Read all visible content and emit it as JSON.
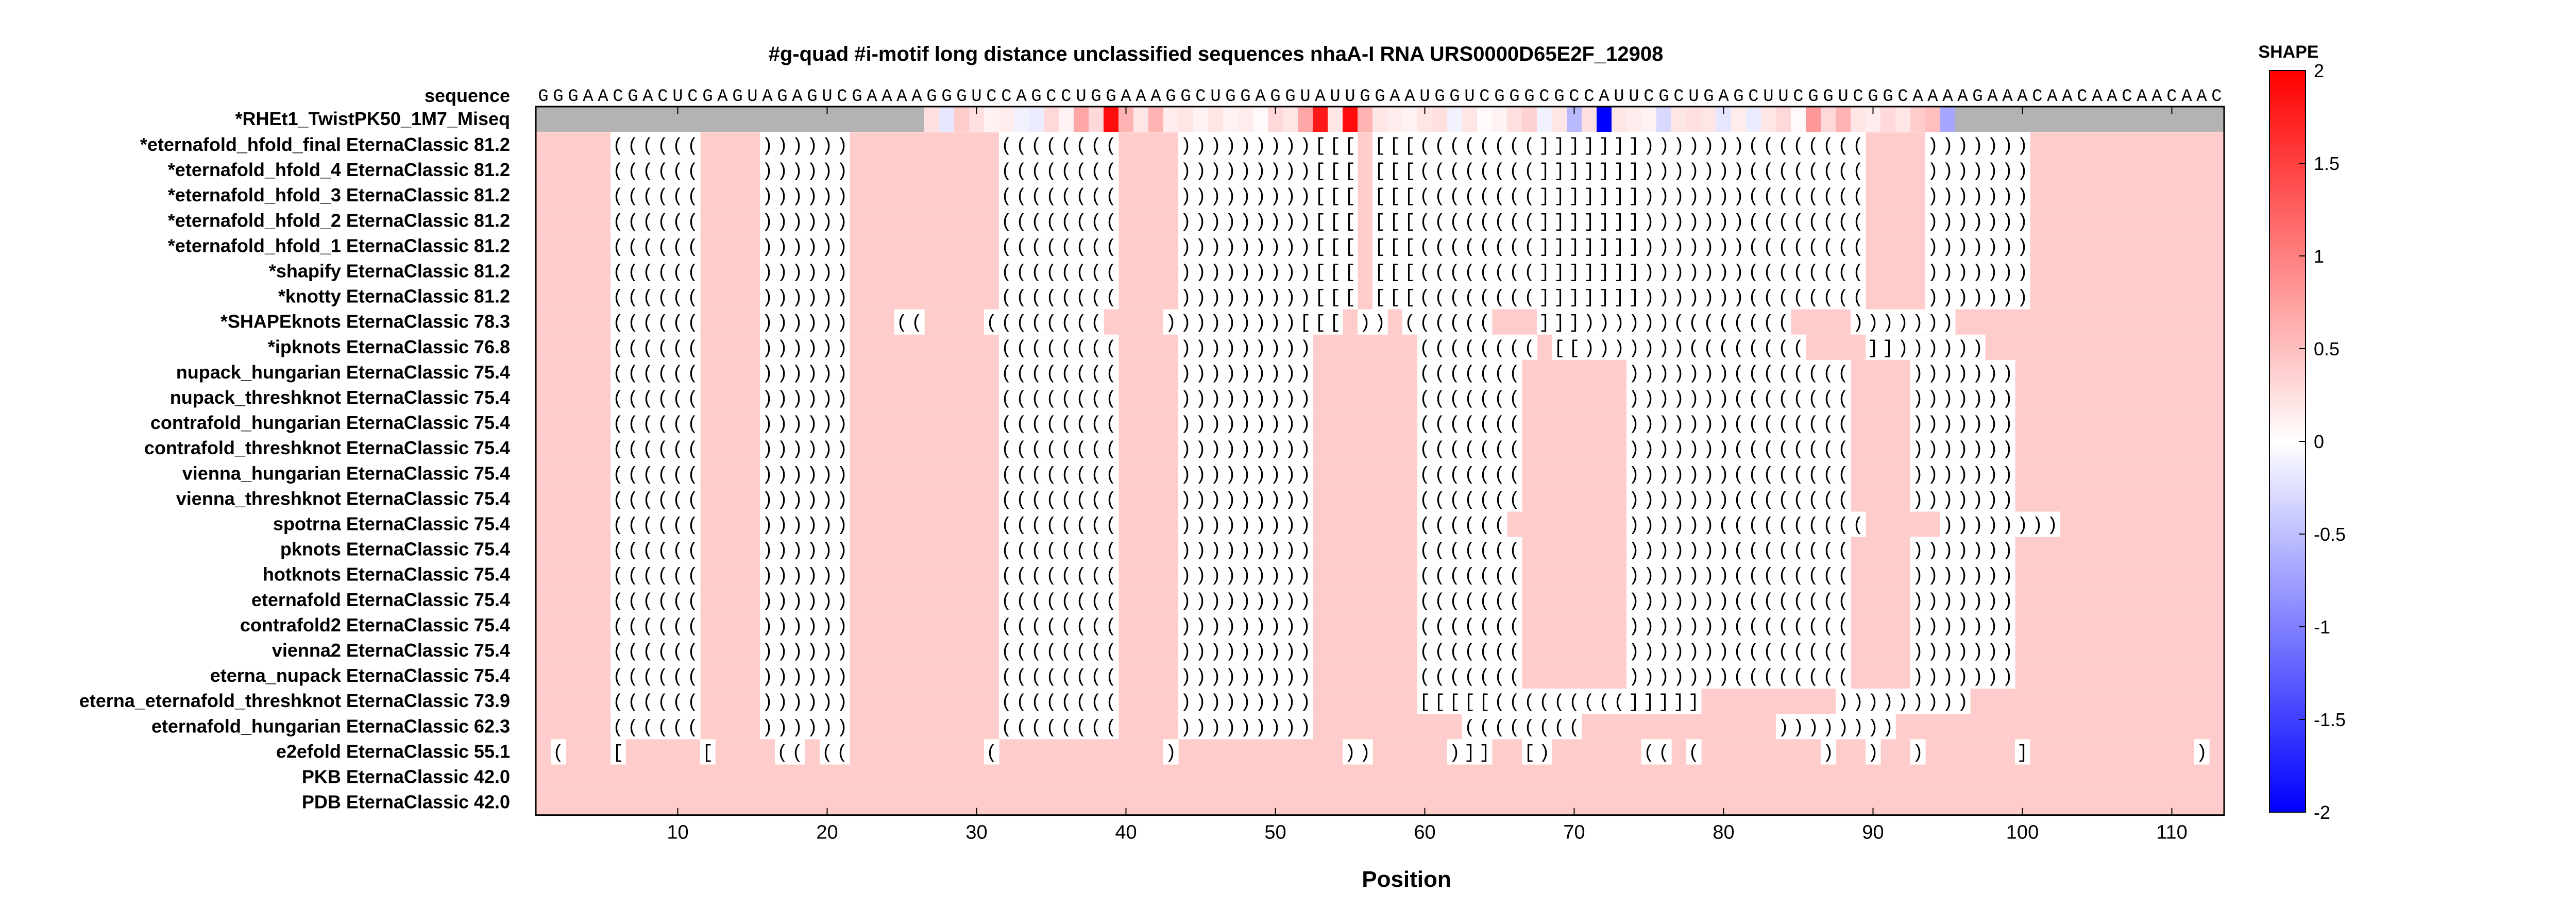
{
  "chart_data": {
    "type": "heatmap",
    "title": "#g-quad #i-motif long distance unclassified sequences nhaA-I RNA URS0000D65E2F_12908",
    "xlabel": "Position",
    "xlim": [
      1,
      115
    ],
    "xticks": [
      10,
      20,
      30,
      40,
      50,
      60,
      70,
      80,
      90,
      100,
      110
    ],
    "colorbar": {
      "label": "SHAPE",
      "range": [
        -2,
        2
      ],
      "ticks": [
        "2",
        "1.5",
        "1",
        "0.5",
        "0",
        "-0.5",
        "-1",
        "-1.5",
        "-2"
      ],
      "low_color": "#0000ff",
      "mid_color": "#ffffff",
      "high_color": "#ff0000"
    },
    "sequence_label": "sequence",
    "sequence": "GGGAACGACUCGAGUAGAGUCGAAAAGGGUCCAGCCUGGAAAGGCUGGAGGUAUUGGAAUGGUCGGGCGCCAUUCGCUGAGCUUCGGUCGGCAAAAGAAACAACAACAACAAC",
    "shape_label": "*RHEt1_TwistPK50_1M7_Miseq",
    "shape_range": [
      27,
      95
    ],
    "shape_values": {
      "27": 0.25,
      "28": -0.2,
      "29": 0.4,
      "30": 0.25,
      "31": 0.1,
      "32": 0.15,
      "33": -0.1,
      "34": -0.15,
      "35": 0.3,
      "36": 0.1,
      "37": 0.7,
      "38": 0.3,
      "39": 1.9,
      "40": 0.6,
      "41": 0.2,
      "42": 0.6,
      "43": 0.15,
      "44": 0.2,
      "45": 0.1,
      "46": 0.2,
      "47": 0.1,
      "48": 0.15,
      "49": 0.05,
      "50": 0.3,
      "51": 0.2,
      "52": 0.7,
      "53": 1.8,
      "54": 0.2,
      "55": 1.9,
      "56": 0.6,
      "57": 0.2,
      "58": 0.15,
      "59": 0.1,
      "60": 0.2,
      "61": 0.25,
      "62": -0.1,
      "63": 0.2,
      "64": 0.05,
      "65": 0.1,
      "66": 0.25,
      "67": 0.35,
      "68": -0.1,
      "69": 0.2,
      "70": -0.55,
      "71": 0.25,
      "72": -2.0,
      "73": 0.2,
      "74": 0.15,
      "75": 0.1,
      "76": -0.3,
      "77": 0.2,
      "78": 0.25,
      "79": 0.2,
      "80": -0.2,
      "81": 0.15,
      "82": -0.15,
      "83": 0.2,
      "84": 0.3,
      "85": 0.05,
      "86": 0.8,
      "87": 0.3,
      "88": 0.6,
      "89": 0.2,
      "90": 0.15,
      "91": 0.3,
      "92": 0.2,
      "93": 0.4,
      "94": 0.5,
      "95": -0.7
    },
    "rows": [
      {
        "name": "*eternafold_hfold_final EternaClassic",
        "score": "81.2",
        "structure": ".....((((((....))))))..........((((((((....)))))))))[[[.[[[((((((((]]]]]]])))))))((((((((....)))))))..................."
      },
      {
        "name": "*eternafold_hfold_4 EternaClassic",
        "score": "81.2",
        "structure": ".....((((((....))))))..........((((((((....)))))))))[[[.[[[((((((((]]]]]]])))))))((((((((....)))))))..................."
      },
      {
        "name": "*eternafold_hfold_3 EternaClassic",
        "score": "81.2",
        "structure": ".....((((((....))))))..........((((((((....)))))))))[[[.[[[((((((((]]]]]]])))))))((((((((....)))))))..................."
      },
      {
        "name": "*eternafold_hfold_2 EternaClassic",
        "score": "81.2",
        "structure": ".....((((((....))))))..........((((((((....)))))))))[[[.[[[((((((((]]]]]]])))))))((((((((....)))))))..................."
      },
      {
        "name": "*eternafold_hfold_1 EternaClassic",
        "score": "81.2",
        "structure": ".....((((((....))))))..........((((((((....)))))))))[[[.[[[((((((((]]]]]]])))))))((((((((....)))))))..................."
      },
      {
        "name": "*shapify EternaClassic",
        "score": "81.2",
        "structure": ".....((((((....))))))..........((((((((....)))))))))[[[.[[[((((((((]]]]]]])))))))((((((((....)))))))..................."
      },
      {
        "name": "*knotty EternaClassic",
        "score": "81.2",
        "structure": ".....((((((....))))))..........((((((((....)))))))))[[[.[[[((((((((]]]]]]])))))))((((((((....)))))))..................."
      },
      {
        "name": "*SHAPEknots EternaClassic",
        "score": "78.3",
        "structure": ".....((((((....))))))...((....((((((((....)))))))))[[[.)).((((((...]]]))))))((((((((....)))))))..................."
      },
      {
        "name": "*ipknots EternaClassic",
        "score": "76.8",
        "structure": ".....((((((....))))))..........((((((((....))))))))).......((((((((.[[)))))))((((((((....]]))))))..................."
      },
      {
        "name": "nupack_hungarian EternaClassic",
        "score": "75.4",
        "structure": ".....((((((....))))))..........((((((((....))))))))).......(((((((.......)))))))((((((((....)))))))..................."
      },
      {
        "name": "nupack_threshknot EternaClassic",
        "score": "75.4",
        "structure": ".....((((((....))))))..........((((((((....))))))))).......(((((((.......)))))))((((((((....)))))))..................."
      },
      {
        "name": "contrafold_hungarian EternaClassic",
        "score": "75.4",
        "structure": ".....((((((....))))))..........((((((((....))))))))).......(((((((.......)))))))((((((((....)))))))..................."
      },
      {
        "name": "contrafold_threshknot EternaClassic",
        "score": "75.4",
        "structure": ".....((((((....))))))..........((((((((....))))))))).......(((((((.......)))))))((((((((....)))))))..................."
      },
      {
        "name": "vienna_hungarian EternaClassic",
        "score": "75.4",
        "structure": ".....((((((....))))))..........((((((((....))))))))).......(((((((.......)))))))((((((((....)))))))..................."
      },
      {
        "name": "vienna_threshknot EternaClassic",
        "score": "75.4",
        "structure": ".....((((((....))))))..........((((((((....))))))))).......(((((((.......)))))))((((((((....)))))))..................."
      },
      {
        "name": "spotrna EternaClassic",
        "score": "75.4",
        "structure": ".....((((((....))))))..........((((((((....))))))))).......((((((........))))))((((((((((.....))))))))..................."
      },
      {
        "name": "pknots EternaClassic",
        "score": "75.4",
        "structure": ".....((((((....))))))..........((((((((....))))))))).......(((((((.......)))))))((((((((....)))))))..................."
      },
      {
        "name": "hotknots EternaClassic",
        "score": "75.4",
        "structure": ".....((((((....))))))..........((((((((....))))))))).......(((((((.......)))))))((((((((....)))))))..................."
      },
      {
        "name": "eternafold EternaClassic",
        "score": "75.4",
        "structure": ".....((((((....))))))..........((((((((....))))))))).......(((((((.......)))))))((((((((....)))))))..................."
      },
      {
        "name": "contrafold2 EternaClassic",
        "score": "75.4",
        "structure": ".....((((((....))))))..........((((((((....))))))))).......(((((((.......)))))))((((((((....)))))))..................."
      },
      {
        "name": "vienna2 EternaClassic",
        "score": "75.4",
        "structure": ".....((((((....))))))..........((((((((....))))))))).......(((((((.......)))))))((((((((....)))))))..................."
      },
      {
        "name": "eterna_nupack EternaClassic",
        "score": "75.4",
        "structure": ".....((((((....))))))..........((((((((....))))))))).......(((((((.......)))))))((((((((....)))))))..................."
      },
      {
        "name": "eterna_eternafold_threshknot EternaClassic",
        "score": "73.9",
        "structure": ".....((((((....))))))..........((((((((....))))))))).......[[[[[(((((((((]]]]].........)))))))))..................."
      },
      {
        "name": "eternafold_hungarian EternaClassic",
        "score": "62.3",
        "structure": ".....((((((....))))))..........((((((((....)))))))))..........((((((((.............)))))))).................."
      },
      {
        "name": "e2efold EternaClassic",
        "score": "55.1",
        "structure": ".(...[.....[....((.((.........(...........)...........)).....)]]..[)......((.(........)..)..)......]...........)....."
      },
      {
        "name": "PKB EternaClassic",
        "score": "42.0",
        "structure": "..................................................................................................................."
      },
      {
        "name": "PDB EternaClassic",
        "score": "42.0",
        "structure": "..................................................................................................................."
      }
    ]
  }
}
